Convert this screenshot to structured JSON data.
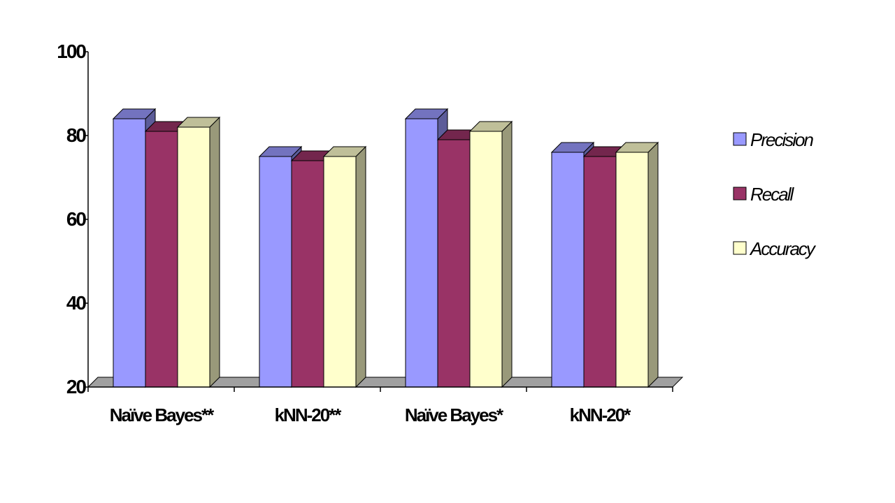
{
  "chart_data": {
    "type": "bar",
    "categories": [
      "Naïve Bayes**",
      "kNN-20**",
      "Naïve Bayes*",
      "kNN-20*"
    ],
    "series": [
      {
        "name": "Precision",
        "values": [
          84,
          75,
          84,
          76
        ],
        "color": "#9999ff"
      },
      {
        "name": "Recall",
        "values": [
          81,
          74,
          79,
          75
        ],
        "color": "#993366"
      },
      {
        "name": "Accuracy",
        "values": [
          82,
          75,
          81,
          76
        ],
        "color": "#ffffcc"
      }
    ],
    "ylim": [
      20,
      100
    ],
    "yticks": [
      20,
      40,
      60,
      80,
      100
    ],
    "legend_position": "right",
    "grid": false,
    "floor_color": "#a0a0a0"
  }
}
